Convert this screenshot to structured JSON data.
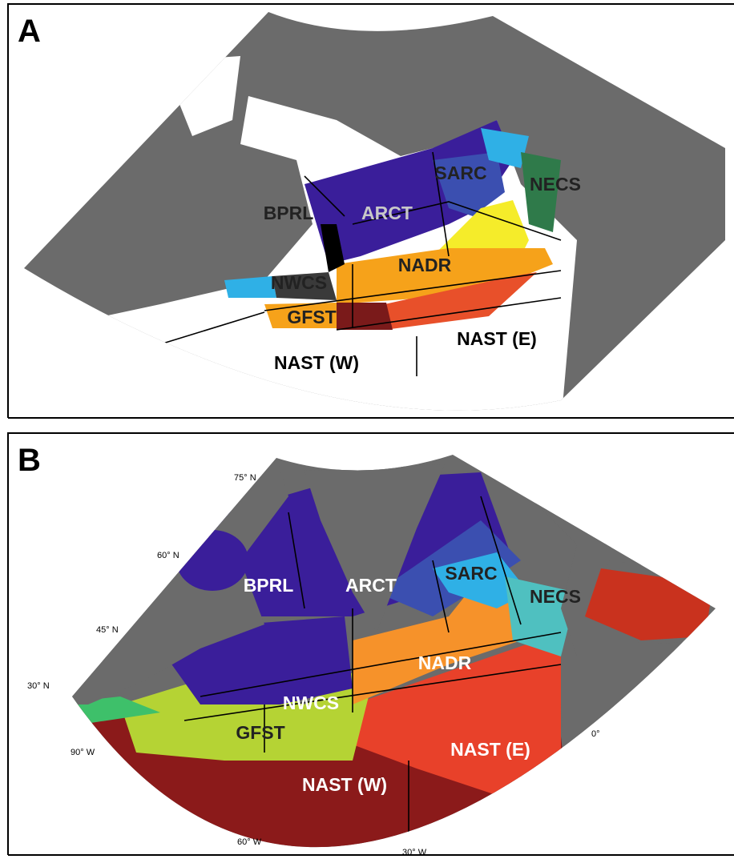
{
  "panels": [
    {
      "label": "A",
      "regions": [
        "BPRL",
        "ARCT",
        "SARC",
        "NECS",
        "NADR",
        "NWCS",
        "GFST",
        "NAST (W)",
        "NAST (E)"
      ]
    },
    {
      "label": "B",
      "regions": [
        "BPRL",
        "ARCT",
        "SARC",
        "NECS",
        "NADR",
        "NWCS",
        "GFST",
        "NAST (W)",
        "NAST (E)"
      ],
      "graticule": [
        "75° N",
        "60° N",
        "45° N",
        "30° N",
        "90° W",
        "60° W",
        "30° W",
        "0°"
      ]
    }
  ]
}
